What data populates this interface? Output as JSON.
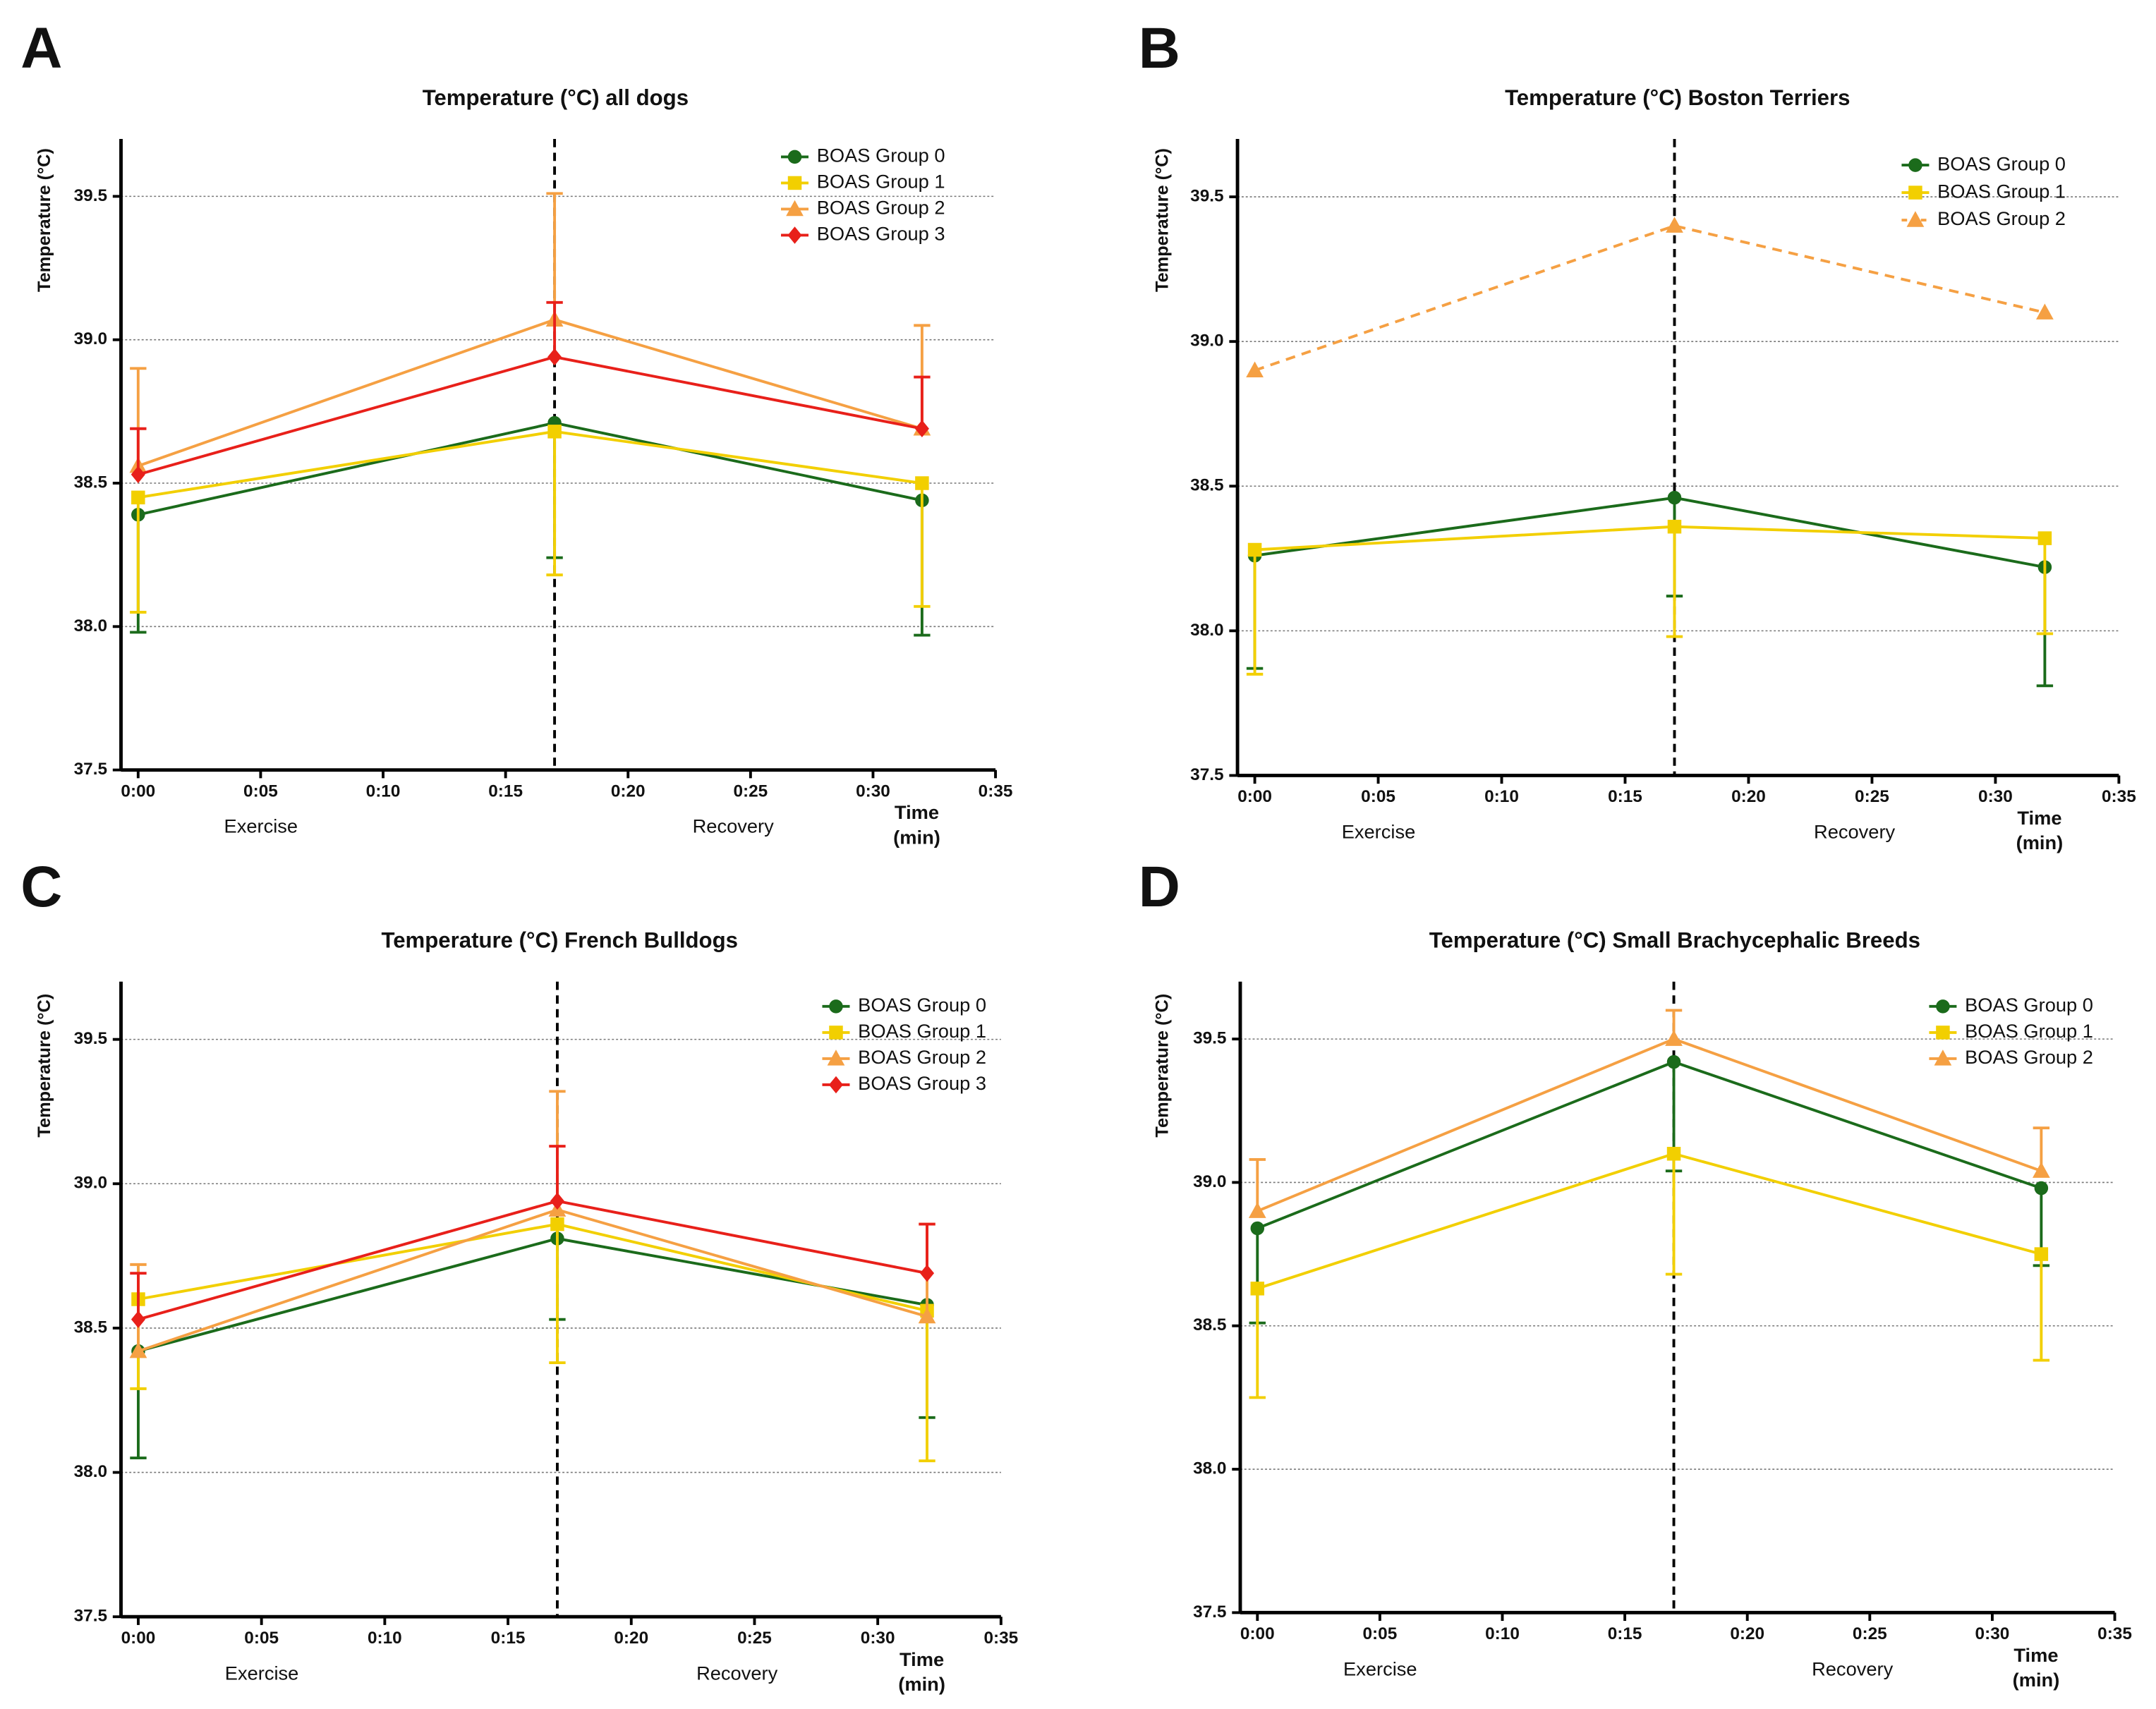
{
  "chart_data": [
    {
      "type": "line",
      "panel_label": "A",
      "title": "Temperature (°C) all dogs",
      "ylabel": "Temperature (°C)",
      "phase_labels": [
        "Exercise",
        "Recovery"
      ],
      "xlabel": [
        "Time",
        "(min)"
      ],
      "x": [
        0,
        17,
        32
      ],
      "vline": 17,
      "legend": "upper right",
      "grid": true,
      "xlim": [
        -0.7,
        35
      ],
      "xticks": [
        {
          "value": 0,
          "label": "0:00"
        },
        {
          "value": 5,
          "label": "0:05"
        },
        {
          "value": 10,
          "label": "0:10"
        },
        {
          "value": 15,
          "label": "0:15"
        },
        {
          "value": 20,
          "label": "0:20"
        },
        {
          "value": 25,
          "label": "0:25"
        },
        {
          "value": 30,
          "label": "0:30"
        },
        {
          "value": 35,
          "label": "0:35"
        }
      ],
      "ylim": [
        37.5,
        39.7
      ],
      "yticks": [
        37.5,
        {
          "value": 38,
          "label": "38.0"
        },
        38.5,
        {
          "value": 39,
          "label": "39.0"
        },
        39.5
      ],
      "series": [
        {
          "name": "BOAS Group 0",
          "color": "#1b6b1b",
          "marker": "circle",
          "error_side": "down",
          "values": [
            38.39,
            38.71,
            38.44
          ],
          "errors": [
            0.41,
            0.47,
            0.47
          ]
        },
        {
          "name": "BOAS Group 1",
          "color": "#f2cf00",
          "marker": "square",
          "error_side": "down",
          "values": [
            38.45,
            38.68,
            38.5
          ],
          "errors": [
            0.4,
            0.5,
            0.43
          ]
        },
        {
          "name": "BOAS Group 2",
          "color": "#f5a043",
          "marker": "triangle",
          "error_side": "up",
          "values": [
            38.56,
            39.07,
            38.69
          ],
          "errors": [
            0.34,
            0.44,
            0.36
          ]
        },
        {
          "name": "BOAS Group 3",
          "color": "#e8201a",
          "marker": "diamond",
          "error_side": "up",
          "values": [
            38.53,
            38.94,
            38.69
          ],
          "errors": [
            0.16,
            0.19,
            0.18
          ]
        }
      ]
    },
    {
      "type": "line",
      "panel_label": "B",
      "title": "Temperature (°C) Boston Terriers",
      "ylabel": "Temperature (°C)",
      "phase_labels": [
        "Exercise",
        "Recovery"
      ],
      "xlabel": [
        "Time",
        "(min)"
      ],
      "x": [
        0,
        17,
        32
      ],
      "vline": 17,
      "legend": "upper right",
      "grid": true,
      "xlim": [
        -0.7,
        35
      ],
      "xticks": [
        {
          "value": 0,
          "label": "0:00"
        },
        {
          "value": 5,
          "label": "0:05"
        },
        {
          "value": 10,
          "label": "0:10"
        },
        {
          "value": 15,
          "label": "0:15"
        },
        {
          "value": 20,
          "label": "0:20"
        },
        {
          "value": 25,
          "label": "0:25"
        },
        {
          "value": 30,
          "label": "0:30"
        },
        {
          "value": 35,
          "label": "0:35"
        }
      ],
      "ylim": [
        37.5,
        39.7
      ],
      "yticks": [
        37.5,
        {
          "value": 38,
          "label": "38.0"
        },
        38.5,
        {
          "value": 39,
          "label": "39.0"
        },
        39.5
      ],
      "series": [
        {
          "name": "BOAS Group 0",
          "color": "#1b6b1b",
          "marker": "circle",
          "error_side": "down",
          "values": [
            38.26,
            38.46,
            38.22
          ],
          "errors": [
            0.39,
            0.34,
            0.41
          ]
        },
        {
          "name": "BOAS Group 1",
          "color": "#f2cf00",
          "marker": "square",
          "error_side": "down",
          "values": [
            38.28,
            38.36,
            38.32
          ],
          "errors": [
            0.43,
            0.38,
            0.33
          ]
        },
        {
          "name": "BOAS Group 2",
          "color": "#f5a043",
          "marker": "triangle",
          "dashed": true,
          "values": [
            38.9,
            39.4,
            39.1
          ]
        }
      ]
    },
    {
      "type": "line",
      "panel_label": "C",
      "title": "Temperature (°C) French Bulldogs",
      "ylabel": "Temperature (°C)",
      "phase_labels": [
        "Exercise",
        "Recovery"
      ],
      "xlabel": [
        "Time",
        "(min)"
      ],
      "x": [
        0,
        17,
        32
      ],
      "vline": 17,
      "legend": "upper right",
      "grid": true,
      "xlim": [
        -0.7,
        35
      ],
      "xticks": [
        {
          "value": 0,
          "label": "0:00"
        },
        {
          "value": 5,
          "label": "0:05"
        },
        {
          "value": 10,
          "label": "0:10"
        },
        {
          "value": 15,
          "label": "0:15"
        },
        {
          "value": 20,
          "label": "0:20"
        },
        {
          "value": 25,
          "label": "0:25"
        },
        {
          "value": 30,
          "label": "0:30"
        },
        {
          "value": 35,
          "label": "0:35"
        }
      ],
      "ylim": [
        37.5,
        39.7
      ],
      "yticks": [
        37.5,
        {
          "value": 38,
          "label": "38.0"
        },
        38.5,
        {
          "value": 39,
          "label": "39.0"
        },
        39.5
      ],
      "series": [
        {
          "name": "BOAS Group 0",
          "color": "#1b6b1b",
          "marker": "circle",
          "error_side": "down",
          "values": [
            38.42,
            38.81,
            38.58
          ],
          "errors": [
            0.37,
            0.28,
            0.39
          ]
        },
        {
          "name": "BOAS Group 1",
          "color": "#f2cf00",
          "marker": "square",
          "error_side": "down",
          "values": [
            38.6,
            38.86,
            38.56
          ],
          "errors": [
            0.31,
            0.48,
            0.52
          ]
        },
        {
          "name": "BOAS Group 2",
          "color": "#f5a043",
          "marker": "triangle",
          "error_side": "up",
          "values": [
            38.42,
            38.91,
            38.54
          ],
          "errors": [
            0.3,
            0.41,
            0.32
          ]
        },
        {
          "name": "BOAS Group 3",
          "color": "#e8201a",
          "marker": "diamond",
          "error_side": "up",
          "values": [
            38.53,
            38.94,
            38.69
          ],
          "errors": [
            0.16,
            0.19,
            0.17
          ]
        }
      ]
    },
    {
      "type": "line",
      "panel_label": "D",
      "title": "Temperature (°C) Small Brachycephalic Breeds",
      "ylabel": "Temperature (°C)",
      "phase_labels": [
        "Exercise",
        "Recovery"
      ],
      "xlabel": [
        "Time",
        "(min)"
      ],
      "x": [
        0,
        17,
        32
      ],
      "vline": 17,
      "legend": "upper right",
      "grid": true,
      "xlim": [
        -0.7,
        35
      ],
      "xticks": [
        {
          "value": 0,
          "label": "0:00"
        },
        {
          "value": 5,
          "label": "0:05"
        },
        {
          "value": 10,
          "label": "0:10"
        },
        {
          "value": 15,
          "label": "0:15"
        },
        {
          "value": 20,
          "label": "0:20"
        },
        {
          "value": 25,
          "label": "0:25"
        },
        {
          "value": 30,
          "label": "0:30"
        },
        {
          "value": 35,
          "label": "0:35"
        }
      ],
      "ylim": [
        37.5,
        39.7
      ],
      "yticks": [
        37.5,
        {
          "value": 38,
          "label": "38.0"
        },
        38.5,
        {
          "value": 39,
          "label": "39.0"
        },
        39.5
      ],
      "series": [
        {
          "name": "BOAS Group 0",
          "color": "#1b6b1b",
          "marker": "circle",
          "error_side": "down",
          "values": [
            38.84,
            39.42,
            38.98
          ],
          "errors": [
            0.33,
            0.38,
            0.27
          ]
        },
        {
          "name": "BOAS Group 1",
          "color": "#f2cf00",
          "marker": "square",
          "error_side": "down",
          "values": [
            38.63,
            39.1,
            38.75
          ],
          "errors": [
            0.38,
            0.42,
            0.37
          ]
        },
        {
          "name": "BOAS Group 2",
          "color": "#f5a043",
          "marker": "triangle",
          "error_side": "up",
          "values": [
            38.9,
            39.5,
            39.04
          ],
          "errors": [
            0.18,
            0.1,
            0.15
          ]
        }
      ]
    }
  ]
}
